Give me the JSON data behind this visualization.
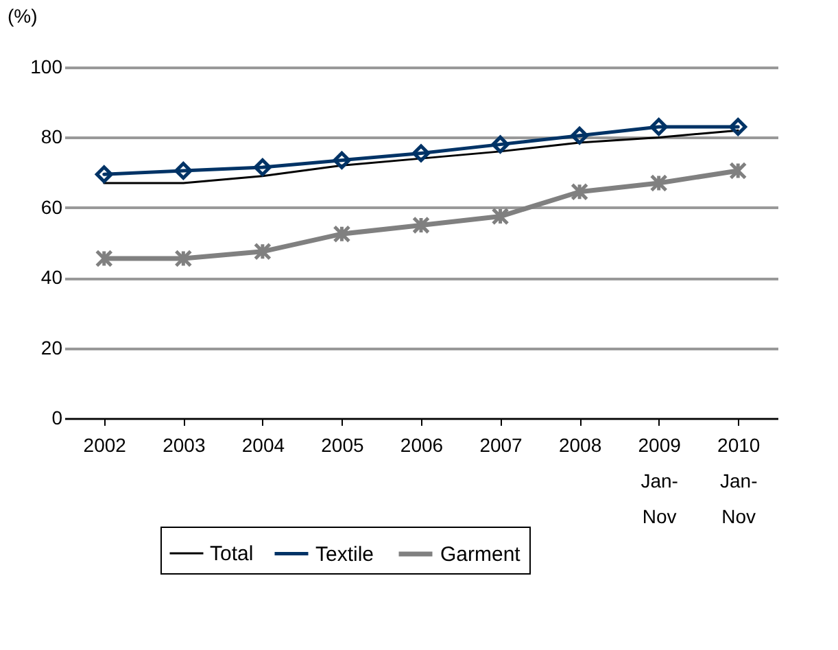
{
  "chart_data": {
    "type": "line",
    "ylabel": "(%)",
    "categories": [
      "2002",
      "2003",
      "2004",
      "2005",
      "2006",
      "2007",
      "2008",
      "2009\nJan-\nNov",
      "2010\nJan-\nNov"
    ],
    "series": [
      {
        "name": "Total",
        "color": "#000000",
        "marker": "none",
        "values": [
          67,
          67,
          69,
          72,
          74,
          76,
          78.5,
          80,
          82
        ]
      },
      {
        "name": "Textile",
        "color": "#003366",
        "marker": "diamond",
        "values": [
          69.5,
          70.5,
          71.5,
          73.5,
          75.5,
          78,
          80.5,
          83,
          83
        ]
      },
      {
        "name": "Garment",
        "color": "#808080",
        "marker": "cross",
        "values": [
          45.5,
          45.5,
          47.5,
          52.5,
          55,
          57.5,
          64.5,
          67,
          70.5
        ]
      }
    ],
    "ylim": [
      0,
      100
    ],
    "yticks": [
      0,
      20,
      40,
      60,
      80,
      100
    ],
    "grid": "y",
    "legend": "bottom"
  }
}
